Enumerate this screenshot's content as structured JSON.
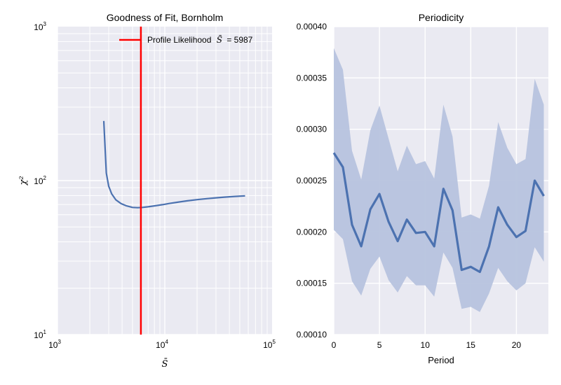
{
  "figure": {
    "background": "#ffffff",
    "axes_background": "#eaeaf2",
    "grid_color": "#ffffff"
  },
  "chart_data": [
    {
      "type": "line",
      "title": "Goodness of Fit, Bornholm",
      "xlabel": "S̄",
      "ylabel": "χ²",
      "xscale": "log",
      "yscale": "log",
      "xlim": [
        1000,
        100000
      ],
      "ylim": [
        10,
        1000
      ],
      "x_ticks": [
        {
          "value": 1000,
          "label": "10",
          "exp": "3"
        },
        {
          "value": 10000,
          "label": "10",
          "exp": "4"
        },
        {
          "value": 100000,
          "label": "10",
          "exp": "5"
        }
      ],
      "y_ticks": [
        {
          "value": 10,
          "label": "10",
          "exp": "1"
        },
        {
          "value": 100,
          "label": "10",
          "exp": "2"
        },
        {
          "value": 1000,
          "label": "10",
          "exp": "3"
        }
      ],
      "grid": true,
      "series": [
        {
          "color": "#4c72b0",
          "x": [
            2700,
            2850,
            3000,
            3200,
            3500,
            3900,
            4400,
            5000,
            5600,
            6200,
            7000,
            8000,
            9500,
            11000,
            13000,
            16000,
            20000,
            25000,
            30000,
            36000,
            45000,
            56000
          ],
          "y": [
            244,
            112,
            92,
            82,
            75,
            71,
            68.5,
            67,
            66.7,
            67,
            67.6,
            68.5,
            69.8,
            71,
            72.3,
            73.8,
            75.2,
            76.4,
            77.3,
            78.1,
            78.9,
            79.6
          ]
        }
      ],
      "vline": {
        "x": 5987,
        "color": "#ff0000",
        "label": "Profile Likelihood"
      },
      "legend": {
        "position": "top-right",
        "label": "Profile Likelihood",
        "symbol": "S̄",
        "value_text": "= 5987"
      }
    },
    {
      "type": "line",
      "title": "Periodicity",
      "xlabel": "Period",
      "ylabel": "",
      "xlim": [
        0,
        23.5
      ],
      "ylim": [
        0.0001,
        0.0004
      ],
      "x_ticks": [
        0,
        5,
        10,
        15,
        20
      ],
      "y_ticks": [
        "0.00010",
        "0.00015",
        "0.00020",
        "0.00025",
        "0.00030",
        "0.00035",
        "0.00040"
      ],
      "grid": true,
      "x": [
        0,
        1,
        2,
        3,
        4,
        5,
        6,
        7,
        8,
        9,
        10,
        11,
        12,
        13,
        14,
        15,
        16,
        17,
        18,
        19,
        20,
        21,
        22,
        23
      ],
      "series": [
        {
          "color": "#4c72b0",
          "values": [
            0.000277,
            0.000263,
            0.000207,
            0.000186,
            0.000222,
            0.000237,
            0.00021,
            0.000191,
            0.000212,
            0.000199,
            0.0002,
            0.000186,
            0.000242,
            0.000221,
            0.000163,
            0.000166,
            0.000161,
            0.000186,
            0.000224,
            0.000207,
            0.000195,
            0.000201,
            0.00025,
            0.000235
          ],
          "upper": [
            0.000379,
            0.000358,
            0.000279,
            0.000251,
            0.000299,
            0.000323,
            0.000291,
            0.000259,
            0.000284,
            0.000266,
            0.000269,
            0.000252,
            0.000324,
            0.000293,
            0.000214,
            0.000217,
            0.000213,
            0.000245,
            0.000307,
            0.000282,
            0.000266,
            0.000271,
            0.000349,
            0.000324
          ],
          "lower": [
            0.000202,
            0.000193,
            0.000152,
            0.000138,
            0.000164,
            0.000176,
            0.000153,
            0.000141,
            0.000157,
            0.000148,
            0.000148,
            0.000137,
            0.00018,
            0.000165,
            0.000125,
            0.000127,
            0.000122,
            0.00014,
            0.000165,
            0.000152,
            0.000143,
            0.00015,
            0.000185,
            0.000171
          ],
          "band_color": "#b7c3de"
        }
      ]
    }
  ]
}
